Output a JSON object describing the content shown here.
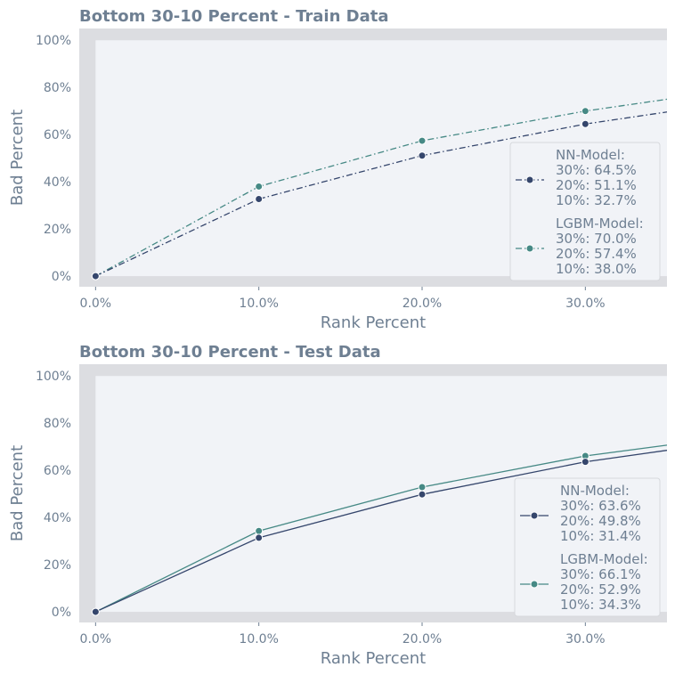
{
  "colors": {
    "nn": "#35466c",
    "lgbm": "#468985",
    "text": "#6e7f92",
    "plot_bg": "#f1f3f7",
    "band": "#dcdde1"
  },
  "chart_data": [
    {
      "type": "line",
      "title": "Bottom 30-10 Percent - Train Data",
      "xlabel": "Rank Percent",
      "ylabel": "Bad Percent",
      "xlim": [
        -1,
        35
      ],
      "ylim": [
        -4.5,
        105
      ],
      "line_style": "dashdot",
      "x_ticks": [
        "0.0%",
        "10.0%",
        "20.0%",
        "30.0%"
      ],
      "y_ticks": [
        "0%",
        "20%",
        "40%",
        "60%",
        "80%",
        "100%"
      ],
      "x": [
        0,
        10,
        20,
        30,
        35
      ],
      "series": [
        {
          "name": "NN-Model",
          "values": [
            0,
            32.7,
            51.1,
            64.5,
            69.6
          ],
          "legend": [
            "NN-Model:",
            "30%: 64.5%",
            "20%: 51.1%",
            "10%: 32.7%"
          ]
        },
        {
          "name": "LGBM-Model",
          "values": [
            0,
            38.0,
            57.4,
            70.0,
            75.0
          ],
          "legend": [
            "LGBM-Model:",
            "30%: 70.0%",
            "20%: 57.4%",
            "10%: 38.0%"
          ]
        }
      ],
      "legend_position": "right"
    },
    {
      "type": "line",
      "title": "Bottom 30-10 Percent - Test Data",
      "xlabel": "Rank Percent",
      "ylabel": "Bad Percent",
      "xlim": [
        -1,
        35
      ],
      "ylim": [
        -4.5,
        105
      ],
      "line_style": "solid",
      "x_ticks": [
        "0.0%",
        "10.0%",
        "20.0%",
        "30.0%"
      ],
      "y_ticks": [
        "0%",
        "20%",
        "40%",
        "60%",
        "80%",
        "100%"
      ],
      "x": [
        0,
        10,
        20,
        30,
        35
      ],
      "series": [
        {
          "name": "NN-Model",
          "values": [
            0,
            31.4,
            49.8,
            63.6,
            68.5
          ],
          "legend": [
            "NN-Model:",
            "30%: 63.6%",
            "20%: 49.8%",
            "10%: 31.4%"
          ]
        },
        {
          "name": "LGBM-Model",
          "values": [
            0,
            34.3,
            52.9,
            66.1,
            70.7
          ],
          "legend": [
            "LGBM-Model:",
            "30%: 66.1%",
            "20%: 52.9%",
            "10%: 34.3%"
          ]
        }
      ],
      "legend_position": "right"
    }
  ]
}
